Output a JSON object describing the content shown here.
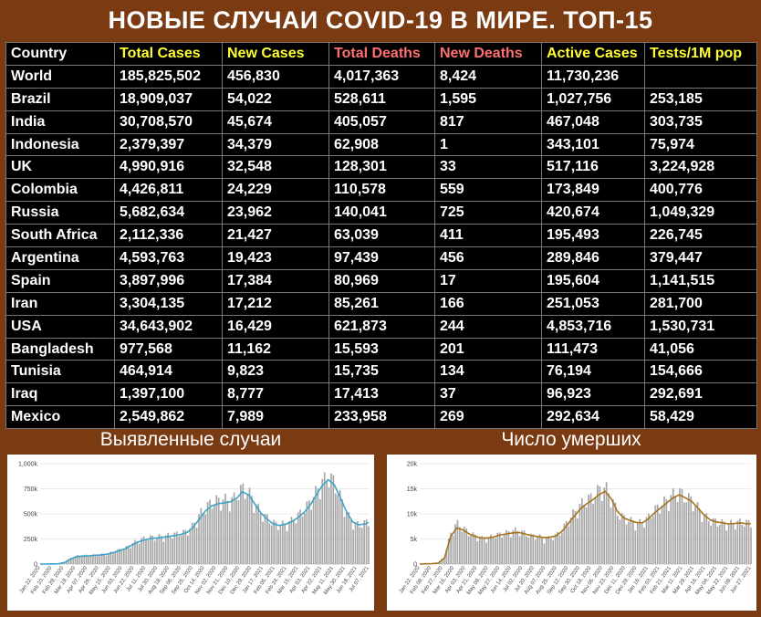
{
  "header": {
    "title": "НОВЫЕ СЛУЧАИ COVID-19 В МИРЕ. ТОП-15"
  },
  "colors": {
    "background": "#7a3a12",
    "header_country": "#ffffff",
    "header_total_cases": "#ffff33",
    "header_new_cases": "#ffff33",
    "header_total_deaths": "#ff7070",
    "header_new_deaths": "#ff7070",
    "header_active_cases": "#ffff33",
    "header_tests": "#ffff33",
    "cases_line": "#3ea3c8",
    "deaths_line": "#a8741a",
    "bars": "#a6a6a6"
  },
  "table": {
    "columns": [
      "Country",
      "Total Cases",
      "New Cases",
      "Total Deaths",
      "New Deaths",
      "Active Cases",
      "Tests/1M pop"
    ],
    "rows": [
      [
        "World",
        "185,825,502",
        "456,830",
        "4,017,363",
        "8,424",
        "11,730,236",
        ""
      ],
      [
        "Brazil",
        "18,909,037",
        "54,022",
        "528,611",
        "1,595",
        "1,027,756",
        "253,185"
      ],
      [
        "India",
        "30,708,570",
        "45,674",
        "405,057",
        "817",
        "467,048",
        "303,735"
      ],
      [
        "Indonesia",
        "2,379,397",
        "34,379",
        "62,908",
        "1",
        "343,101",
        "75,974"
      ],
      [
        "UK",
        "4,990,916",
        "32,548",
        "128,301",
        "33",
        "517,116",
        "3,224,928"
      ],
      [
        "Colombia",
        "4,426,811",
        "24,229",
        "110,578",
        "559",
        "173,849",
        "400,776"
      ],
      [
        "Russia",
        "5,682,634",
        "23,962",
        "140,041",
        "725",
        "420,674",
        "1,049,329"
      ],
      [
        "South Africa",
        "2,112,336",
        "21,427",
        "63,039",
        "411",
        "195,493",
        "226,745"
      ],
      [
        "Argentina",
        "4,593,763",
        "19,423",
        "97,439",
        "456",
        "289,846",
        "379,447"
      ],
      [
        "Spain",
        "3,897,996",
        "17,384",
        "80,969",
        "17",
        "195,604",
        "1,141,515"
      ],
      [
        "Iran",
        "3,304,135",
        "17,212",
        "85,261",
        "166",
        "251,053",
        "281,700"
      ],
      [
        "USA",
        "34,643,902",
        "16,429",
        "621,873",
        "244",
        "4,853,716",
        "1,530,731"
      ],
      [
        "Bangladesh",
        "977,568",
        "11,162",
        "15,593",
        "201",
        "111,473",
        "41,056"
      ],
      [
        "Tunisia",
        "464,914",
        "9,823",
        "15,735",
        "134",
        "76,194",
        "154,666"
      ],
      [
        "Iraq",
        "1,397,100",
        "8,777",
        "17,413",
        "37",
        "96,923",
        "292,691"
      ],
      [
        "Mexico",
        "2,549,862",
        "7,989",
        "233,958",
        "269",
        "292,634",
        "58,429"
      ]
    ]
  },
  "panels": {
    "cases_title": "Выявленные случаи",
    "deaths_title": "Число умерших"
  },
  "chart_data": [
    {
      "type": "bar",
      "title": "Выявленные случаи",
      "ylim": [
        0,
        1000000
      ],
      "yticks": [
        "0",
        "250k",
        "500k",
        "750k",
        "1,000k"
      ],
      "ytick_values": [
        0,
        250000,
        500000,
        750000,
        1000000
      ],
      "xticks": [
        "Jan 22, 2020",
        "Feb 10, 2020",
        "Feb 29, 2020",
        "Mar 19, 2020",
        "Apr 07, 2020",
        "Apr 26, 2020",
        "May 15, 2020",
        "Jun 03, 2020",
        "Jun 22, 2020",
        "Jul 11, 2020",
        "Jul 30, 2020",
        "Aug 18, 2020",
        "Sep 06, 2020",
        "Sep 25, 2020",
        "Oct 14, 2020",
        "Nov 02, 2020",
        "Nov 21, 2020",
        "Dec 10, 2020",
        "Dec 29, 2020",
        "Jan 17, 2021",
        "Feb 05, 2021",
        "Feb 24, 2021",
        "Mar 15, 2021",
        "Apr 03, 2021",
        "Apr 22, 2021",
        "May 11, 2021",
        "May 30, 2021",
        "Jun 18, 2021",
        "Jul 07, 2021"
      ],
      "series": [
        {
          "kind": "bars",
          "x": [
            0,
            10,
            20,
            30,
            40,
            50,
            60,
            70,
            80,
            90,
            100,
            110,
            120,
            130,
            140,
            150,
            160,
            170,
            180,
            190,
            200,
            210,
            220,
            230,
            240,
            250,
            260,
            270,
            280,
            290,
            300,
            310,
            320,
            330,
            340,
            350,
            360,
            370,
            380,
            390,
            400,
            410,
            420,
            430,
            440,
            450,
            460,
            470,
            480,
            490,
            500,
            510,
            520,
            530,
            536
          ],
          "values": [
            0,
            1000,
            2000,
            3000,
            20000,
            60000,
            80000,
            85000,
            85000,
            90000,
            95000,
            100000,
            120000,
            140000,
            160000,
            200000,
            230000,
            250000,
            260000,
            265000,
            270000,
            280000,
            290000,
            300000,
            320000,
            380000,
            480000,
            550000,
            600000,
            620000,
            630000,
            610000,
            660000,
            740000,
            700000,
            600000,
            500000,
            450000,
            400000,
            380000,
            390000,
            420000,
            470000,
            520000,
            600000,
            700000,
            800000,
            850000,
            800000,
            650000,
            500000,
            400000,
            380000,
            400000,
            420000
          ]
        },
        {
          "kind": "line",
          "x": [
            0,
            10,
            20,
            30,
            40,
            50,
            60,
            70,
            80,
            90,
            100,
            110,
            120,
            130,
            140,
            150,
            160,
            170,
            180,
            190,
            200,
            210,
            220,
            230,
            240,
            250,
            260,
            270,
            280,
            290,
            300,
            310,
            320,
            330,
            340,
            350,
            360,
            370,
            380,
            390,
            400,
            410,
            420,
            430,
            440,
            450,
            460,
            470,
            480,
            490,
            500,
            510,
            520,
            530,
            536
          ],
          "values": [
            0,
            1000,
            2000,
            3000,
            15000,
            50000,
            75000,
            80000,
            82000,
            87000,
            92000,
            100000,
            115000,
            135000,
            155000,
            190000,
            220000,
            240000,
            255000,
            260000,
            265000,
            275000,
            285000,
            295000,
            315000,
            370000,
            450000,
            530000,
            580000,
            600000,
            610000,
            620000,
            650000,
            720000,
            690000,
            600000,
            510000,
            450000,
            400000,
            385000,
            395000,
            420000,
            460000,
            510000,
            580000,
            680000,
            780000,
            840000,
            790000,
            660000,
            520000,
            420000,
            390000,
            400000,
            415000
          ]
        }
      ]
    },
    {
      "type": "bar",
      "title": "Число умерших",
      "ylim": [
        0,
        20000
      ],
      "yticks": [
        "0",
        "5k",
        "10k",
        "15k",
        "20k"
      ],
      "ytick_values": [
        0,
        5000,
        10000,
        15000,
        20000
      ],
      "xticks": [
        "Jan 22, 2020",
        "Feb 09, 2020",
        "Feb 27, 2020",
        "Mar 16, 2020",
        "Apr 03, 2020",
        "Apr 21, 2020",
        "May 09, 2020",
        "May 27, 2020",
        "Jun 14, 2020",
        "Jul 02, 2020",
        "Jul 20, 2020",
        "Aug 07, 2020",
        "Aug 25, 2020",
        "Sep 12, 2020",
        "Sep 30, 2020",
        "Oct 18, 2020",
        "Nov 05, 2020",
        "Nov 23, 2020",
        "Dec 11, 2020",
        "Dec 29, 2020",
        "Jan 16, 2021",
        "Feb 03, 2021",
        "Feb 21, 2021",
        "Mar 11, 2021",
        "Mar 29, 2021",
        "Apr 16, 2021",
        "May 04, 2021",
        "May 22, 2021",
        "Jun 09, 2021",
        "Jun 27, 2021"
      ],
      "series": [
        {
          "kind": "bars",
          "x": [
            0,
            10,
            20,
            30,
            40,
            50,
            60,
            70,
            80,
            90,
            100,
            110,
            120,
            130,
            140,
            150,
            160,
            170,
            180,
            190,
            200,
            210,
            220,
            230,
            240,
            250,
            260,
            270,
            280,
            290,
            300,
            310,
            320,
            330,
            340,
            350,
            360,
            370,
            380,
            390,
            400,
            410,
            420,
            430,
            440,
            450,
            460,
            470,
            480,
            490,
            500,
            510,
            520,
            530,
            536
          ],
          "values": [
            0,
            50,
            100,
            200,
            1500,
            6000,
            8000,
            7000,
            6000,
            5500,
            5000,
            5000,
            5500,
            5800,
            6000,
            6500,
            6500,
            6000,
            5500,
            5500,
            5000,
            5000,
            5500,
            6500,
            8500,
            10000,
            11500,
            12500,
            13000,
            14500,
            15000,
            13000,
            10000,
            9000,
            8500,
            8000,
            8000,
            9000,
            10500,
            11500,
            12500,
            13500,
            14000,
            13000,
            12500,
            11000,
            9500,
            8500,
            8200,
            8000,
            7800,
            8000,
            8200,
            8000,
            8100
          ]
        },
        {
          "kind": "line",
          "x": [
            0,
            10,
            20,
            30,
            40,
            50,
            60,
            70,
            80,
            90,
            100,
            110,
            120,
            130,
            140,
            150,
            160,
            170,
            180,
            190,
            200,
            210,
            220,
            230,
            240,
            250,
            260,
            270,
            280,
            290,
            300,
            310,
            320,
            330,
            340,
            350,
            360,
            370,
            380,
            390,
            400,
            410,
            420,
            430,
            440,
            450,
            460,
            470,
            480,
            490,
            500,
            510,
            520,
            530,
            536
          ],
          "values": [
            0,
            50,
            100,
            200,
            1200,
            5500,
            7200,
            6800,
            6000,
            5500,
            5200,
            5200,
            5400,
            5800,
            6000,
            6200,
            6300,
            6000,
            5700,
            5500,
            5300,
            5300,
            5600,
            6500,
            8000,
            9500,
            11000,
            12000,
            12800,
            13800,
            14500,
            13000,
            10500,
            9200,
            8700,
            8300,
            8200,
            9000,
            10200,
            11200,
            12200,
            13200,
            13800,
            13200,
            12500,
            11200,
            9800,
            8800,
            8400,
            8200,
            8000,
            8100,
            8200,
            8000,
            8000
          ]
        }
      ]
    }
  ]
}
